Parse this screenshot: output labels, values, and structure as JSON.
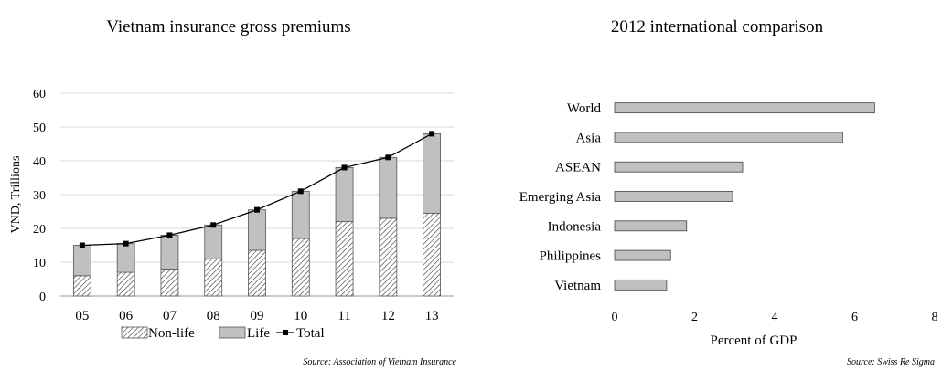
{
  "chart_data": [
    {
      "type": "bar",
      "stacked": true,
      "title": "Vietnam insurance gross premiums",
      "xlabel": "",
      "ylabel": "VND, Trillions",
      "categories": [
        "05",
        "06",
        "07",
        "08",
        "09",
        "10",
        "11",
        "12",
        "13"
      ],
      "ylim": [
        0,
        60
      ],
      "yticks": [
        0,
        10,
        20,
        30,
        40,
        50,
        60
      ],
      "grid": true,
      "legend_position": "bottom",
      "series": [
        {
          "name": "Non-life",
          "kind": "bar",
          "pattern": "diagonal-hatch",
          "values": [
            6,
            7,
            8,
            11,
            13.5,
            17,
            22,
            23,
            24.5
          ]
        },
        {
          "name": "Life",
          "kind": "bar",
          "color": "#c0c0c0",
          "values": [
            9,
            8.5,
            10,
            10,
            12,
            14,
            16,
            18,
            23.5
          ]
        },
        {
          "name": "Total",
          "kind": "line",
          "marker": "square",
          "color": "#000000",
          "values": [
            15,
            15.5,
            18,
            21,
            25.5,
            31,
            38,
            41,
            48
          ]
        }
      ],
      "source": "Source: Association of Vietnam Insurance"
    },
    {
      "type": "bar",
      "orientation": "horizontal",
      "title": "2012 international comparison",
      "xlabel": "Percent of GDP",
      "ylabel": "",
      "categories": [
        "World",
        "Asia",
        "ASEAN",
        "Emerging Asia",
        "Indonesia",
        "Philippines",
        "Vietnam"
      ],
      "values": [
        6.5,
        5.7,
        3.2,
        2.95,
        1.8,
        1.4,
        1.3
      ],
      "xlim": [
        0,
        8
      ],
      "xticks": [
        0,
        2,
        4,
        6,
        8
      ],
      "grid": false,
      "color": "#c0c0c0",
      "source": "Source: Swiss Re Sigma"
    }
  ]
}
